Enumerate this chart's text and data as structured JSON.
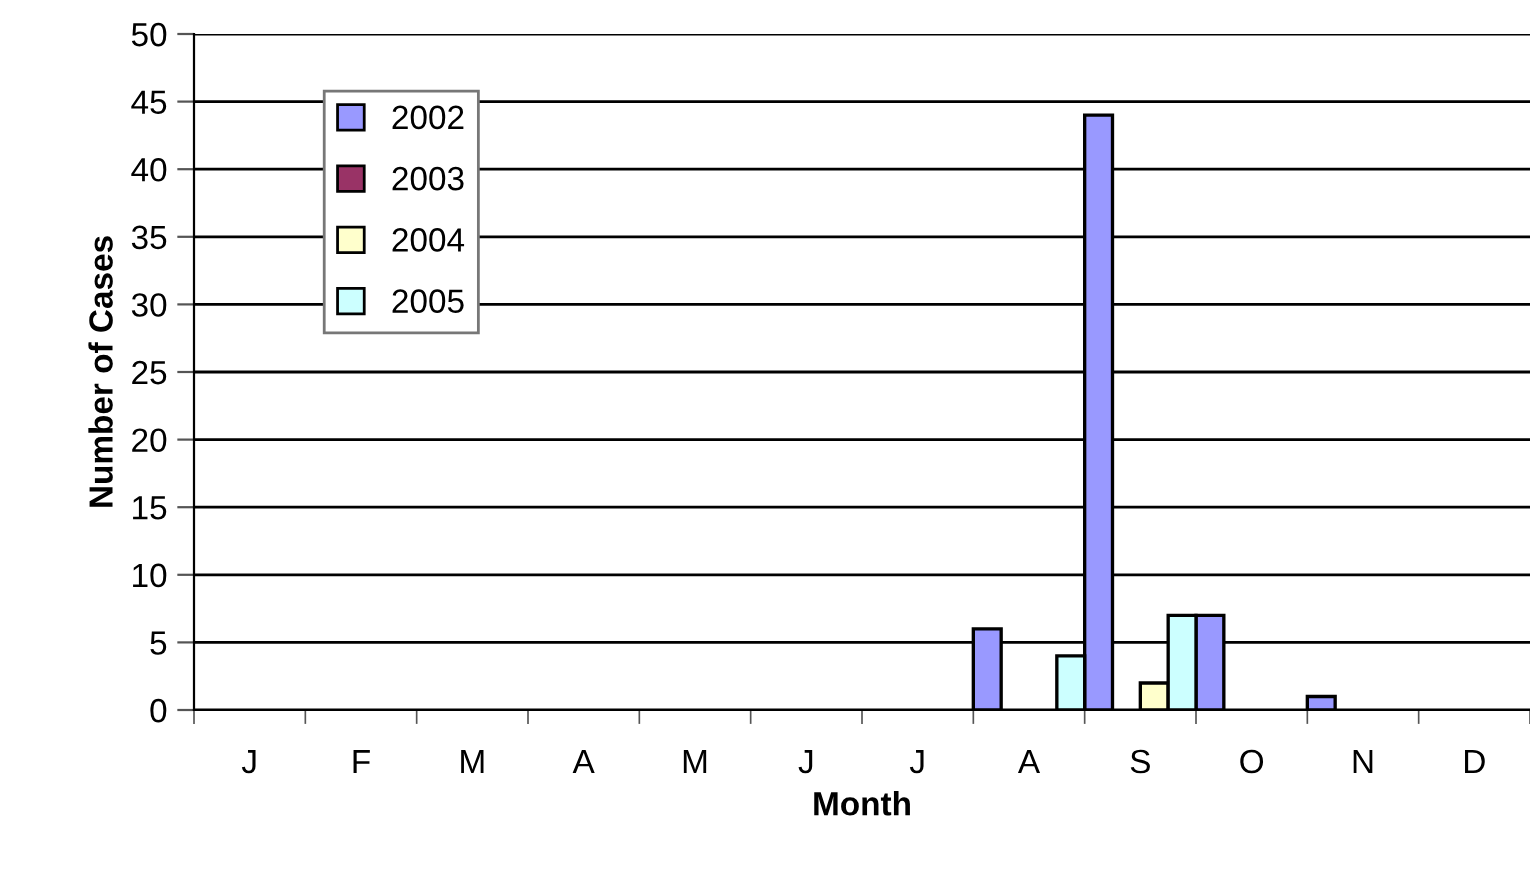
{
  "chart_data": {
    "type": "bar",
    "xlabel": "Month",
    "ylabel": "Number of Cases",
    "categories": [
      "J",
      "F",
      "M",
      "A",
      "M",
      "J",
      "J",
      "A",
      "S",
      "O",
      "N",
      "D"
    ],
    "series": [
      {
        "name": "2002",
        "color": "#9999ff",
        "values": [
          null,
          null,
          null,
          null,
          null,
          null,
          null,
          6,
          44,
          7,
          1,
          null
        ]
      },
      {
        "name": "2003",
        "color": "#993366",
        "values": [
          null,
          null,
          null,
          null,
          null,
          null,
          null,
          null,
          null,
          null,
          null,
          null
        ]
      },
      {
        "name": "2004",
        "color": "#ffffcc",
        "values": [
          null,
          null,
          null,
          null,
          null,
          null,
          null,
          null,
          2,
          null,
          null,
          null
        ]
      },
      {
        "name": "2005",
        "color": "#ccffff",
        "values": [
          null,
          null,
          null,
          null,
          null,
          null,
          null,
          4,
          7,
          null,
          null,
          null
        ]
      }
    ],
    "ylim": [
      0,
      50
    ],
    "yticks": [
      0,
      5,
      10,
      15,
      20,
      25,
      30,
      35,
      40,
      45,
      50
    ],
    "grid": "y",
    "legend": "top left"
  }
}
